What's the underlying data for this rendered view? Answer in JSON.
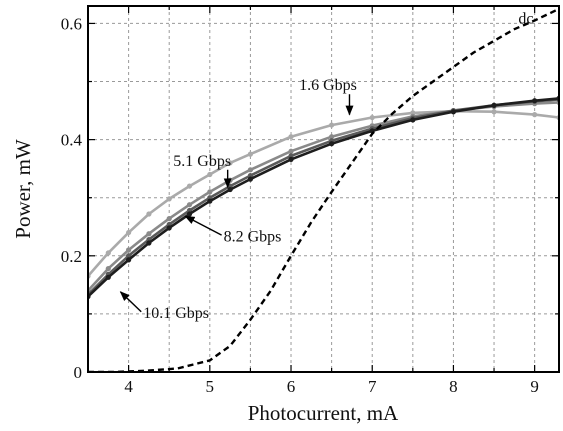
{
  "chart_data": {
    "type": "line",
    "title": "",
    "xlabel": "Photocurrent, mA",
    "ylabel": "Power, mW",
    "xlim": [
      3.5,
      9.3
    ],
    "ylim": [
      0,
      0.63
    ],
    "xticks": [
      4,
      5,
      6,
      7,
      8,
      9
    ],
    "yticks": [
      0,
      0.2,
      0.4,
      0.6
    ],
    "xtick_labels": [
      "4",
      "5",
      "6",
      "7",
      "8",
      "9"
    ],
    "ytick_labels": [
      "0",
      "0.2",
      "0.4",
      "0.6"
    ],
    "grid": true,
    "legend": "none (inline annotations)",
    "series": [
      {
        "name": "1.6 Gbps",
        "color": "#aaaaaa",
        "style": "solid-markers",
        "x": [
          3.5,
          3.75,
          4,
          4.25,
          4.5,
          4.75,
          5,
          5.25,
          5.5,
          6,
          6.5,
          7,
          7.5,
          8,
          8.5,
          9,
          9.3
        ],
        "y": [
          0.165,
          0.205,
          0.24,
          0.272,
          0.298,
          0.32,
          0.34,
          0.36,
          0.375,
          0.405,
          0.425,
          0.438,
          0.446,
          0.449,
          0.448,
          0.443,
          0.438
        ]
      },
      {
        "name": "5.1 Gbps",
        "color": "#8a8a8a",
        "style": "solid-markers",
        "x": [
          3.5,
          3.75,
          4,
          4.25,
          4.5,
          4.75,
          5,
          5.25,
          5.5,
          6,
          6.5,
          7,
          7.5,
          8,
          8.5,
          9,
          9.3
        ],
        "y": [
          0.14,
          0.178,
          0.21,
          0.238,
          0.264,
          0.288,
          0.31,
          0.33,
          0.348,
          0.38,
          0.405,
          0.424,
          0.44,
          0.45,
          0.457,
          0.462,
          0.464
        ]
      },
      {
        "name": "8.2 Gbps",
        "color": "#5a5a5a",
        "style": "solid-markers",
        "x": [
          3.5,
          3.75,
          4,
          4.25,
          4.5,
          4.75,
          5,
          5.25,
          5.5,
          6,
          6.5,
          7,
          7.5,
          8,
          8.5,
          9,
          9.3
        ],
        "y": [
          0.133,
          0.168,
          0.2,
          0.228,
          0.254,
          0.278,
          0.3,
          0.32,
          0.338,
          0.372,
          0.398,
          0.419,
          0.437,
          0.45,
          0.459,
          0.466,
          0.469
        ]
      },
      {
        "name": "10.1 Gbps",
        "color": "#1e1e1e",
        "style": "solid-markers",
        "x": [
          3.5,
          3.75,
          4,
          4.25,
          4.5,
          4.75,
          5,
          5.25,
          5.5,
          6,
          6.5,
          7,
          7.5,
          8,
          8.5,
          9,
          9.3
        ],
        "y": [
          0.13,
          0.163,
          0.193,
          0.222,
          0.248,
          0.272,
          0.294,
          0.314,
          0.332,
          0.366,
          0.393,
          0.415,
          0.434,
          0.448,
          0.459,
          0.467,
          0.471
        ]
      },
      {
        "name": "dc",
        "color": "#000000",
        "style": "dashed",
        "x": [
          3.5,
          3.8,
          4.2,
          4.6,
          5,
          5.25,
          5.5,
          5.75,
          6,
          6.25,
          6.5,
          6.75,
          7,
          7.25,
          7.5,
          7.75,
          8,
          8.25,
          8.5,
          8.75,
          9,
          9.3
        ],
        "y": [
          0,
          0,
          0.002,
          0.006,
          0.02,
          0.045,
          0.09,
          0.14,
          0.2,
          0.258,
          0.31,
          0.36,
          0.41,
          0.445,
          0.475,
          0.5,
          0.525,
          0.55,
          0.57,
          0.59,
          0.605,
          0.625
        ]
      }
    ],
    "annotations": [
      {
        "text": "dc",
        "x": 8.8,
        "y": 0.6,
        "series": "dc"
      },
      {
        "text": "1.6 Gbps",
        "x": 6.1,
        "y": 0.485,
        "arrow_to": [
          6.72,
          0.443
        ],
        "series": "1.6 Gbps"
      },
      {
        "text": "5.1 Gbps",
        "x": 4.55,
        "y": 0.355,
        "arrow_to": [
          5.22,
          0.318
        ],
        "series": "5.1 Gbps"
      },
      {
        "text": "8.2 Gbps",
        "x": 5.17,
        "y": 0.225,
        "arrow_to": [
          4.7,
          0.268
        ],
        "series": "8.2 Gbps"
      },
      {
        "text": "10.1 Gbps",
        "x": 4.18,
        "y": 0.093,
        "arrow_to": [
          3.9,
          0.138
        ],
        "series": "10.1 Gbps"
      }
    ]
  }
}
